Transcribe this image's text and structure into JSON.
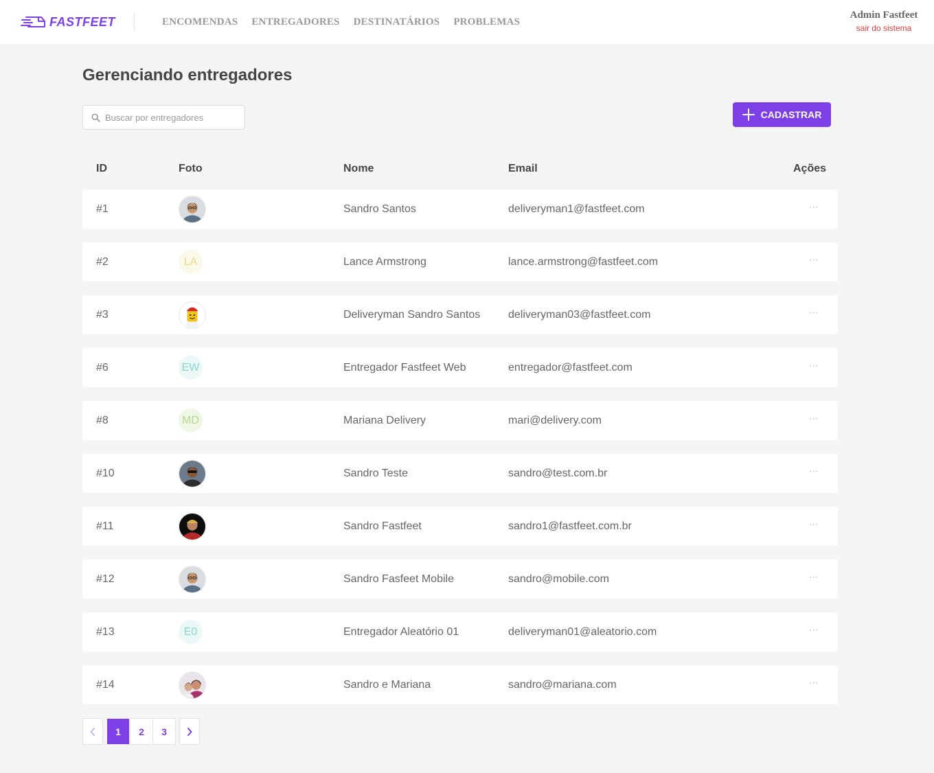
{
  "header": {
    "logo_text": "FASTFEET",
    "nav": [
      "ENCOMENDAS",
      "ENTREGADORES",
      "DESTINATÁRIOS",
      "PROBLEMAS"
    ],
    "profile_name": "Admin Fastfeet",
    "logout_label": "sair do sistema"
  },
  "page": {
    "title": "Gerenciando entregadores",
    "search_placeholder": "Buscar por entregadores",
    "add_button_label": "CADASTRAR"
  },
  "table": {
    "columns": {
      "id": "ID",
      "foto": "Foto",
      "nome": "Nome",
      "email": "Email",
      "acoes": "Ações"
    },
    "actions_glyph": "···",
    "rows": [
      {
        "id": "#1",
        "nome": "Sandro Santos",
        "email": "deliveryman1@fastfeet.com",
        "avatar": {
          "kind": "photo",
          "icon": "man-glasses-photo",
          "skin": "#c8966e",
          "hair": "#2b2118",
          "shirt": "#5b6f86",
          "bg": "#d9dde2"
        }
      },
      {
        "id": "#2",
        "nome": "Lance Armstrong",
        "email": "lance.armstrong@fastfeet.com",
        "avatar": {
          "kind": "initials",
          "text": "LA",
          "color": "#e8d98a",
          "bg": "#fbf9e9"
        }
      },
      {
        "id": "#3",
        "nome": "Deliveryman Sandro Santos",
        "email": "deliveryman03@fastfeet.com",
        "avatar": {
          "kind": "photo",
          "icon": "lego-figure-photo",
          "skin": "#f2c31b",
          "hair": "#d7261e",
          "shirt": "#f3f3f3",
          "bg": "#ffffff"
        }
      },
      {
        "id": "#6",
        "nome": "Entregador Fastfeet Web",
        "email": "entregador@fastfeet.com",
        "avatar": {
          "kind": "initials",
          "text": "EW",
          "color": "#8dd6d0",
          "bg": "#eaf8f6"
        }
      },
      {
        "id": "#8",
        "nome": "Mariana Delivery",
        "email": "mari@delivery.com",
        "avatar": {
          "kind": "initials",
          "text": "MD",
          "color": "#b5d88c",
          "bg": "#eff7e6"
        }
      },
      {
        "id": "#10",
        "nome": "Sandro Teste",
        "email": "sandro@test.com.br",
        "avatar": {
          "kind": "photo",
          "icon": "man-sunglasses-photo",
          "skin": "#8a5a3c",
          "hair": "#111111",
          "shirt": "#2d2d2d",
          "bg": "#6b7b8c"
        }
      },
      {
        "id": "#11",
        "nome": "Sandro Fastfeet",
        "email": "sandro1@fastfeet.com.br",
        "avatar": {
          "kind": "photo",
          "icon": "man-cap-photo",
          "skin": "#b98560",
          "hair": "#d8b04a",
          "shirt": "#b42a26",
          "bg": "#0d0d0d"
        }
      },
      {
        "id": "#12",
        "nome": "Sandro Fasfeet Mobile",
        "email": "sandro@mobile.com",
        "avatar": {
          "kind": "photo",
          "icon": "man-glasses-photo",
          "skin": "#c8966e",
          "hair": "#2b2118",
          "shirt": "#5b6f86",
          "bg": "#d9dde2"
        }
      },
      {
        "id": "#13",
        "nome": "Entregador Aleatório 01",
        "email": "deliveryman01@aleatorio.com",
        "avatar": {
          "kind": "initials",
          "text": "E0",
          "color": "#8dd6d0",
          "bg": "#eaf8f6"
        }
      },
      {
        "id": "#14",
        "nome": "Sandro e Mariana",
        "email": "sandro@mariana.com",
        "avatar": {
          "kind": "photo",
          "icon": "couple-photo",
          "skin": "#c98f73",
          "hair": "#3a2218",
          "shirt": "#a8336a",
          "bg": "#e8e4ea"
        }
      }
    ]
  },
  "pagination": {
    "pages": [
      "1",
      "2",
      "3"
    ],
    "current": "1"
  },
  "colors": {
    "primary": "#7d40e7",
    "logout": "#de3b3b",
    "background": "#f5f5f5"
  }
}
